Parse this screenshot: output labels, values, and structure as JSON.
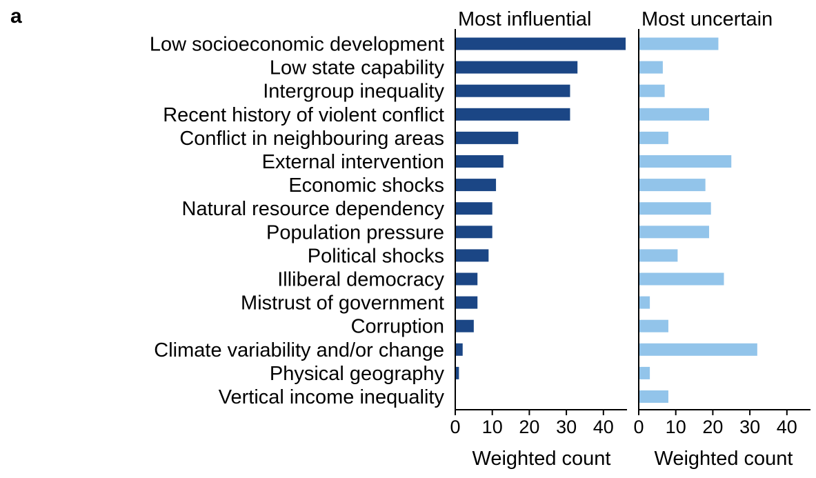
{
  "panel_letter": "a",
  "chart_data": {
    "type": "bar",
    "orientation": "horizontal",
    "categories": [
      "Low socioeconomic development",
      "Low state capability",
      "Intergroup inequality",
      "Recent history of violent conflict",
      "Conflict in neighbouring areas",
      "External intervention",
      "Economic shocks",
      "Natural resource dependency",
      "Population pressure",
      "Political shocks",
      "Illiberal democracy",
      "Mistrust of government",
      "Corruption",
      "Climate variability and/or change",
      "Physical geography",
      "Vertical income inequality"
    ],
    "panels": [
      {
        "title": "Most influential",
        "xlabel": "Weighted count",
        "xlim": [
          0,
          46
        ],
        "ticks": [
          0,
          10,
          20,
          30,
          40
        ],
        "color": "#1b4685",
        "values": [
          46,
          33,
          31,
          31,
          17,
          13,
          11,
          10,
          10,
          9,
          6,
          6,
          5,
          2,
          1,
          0
        ]
      },
      {
        "title": "Most uncertain",
        "xlabel": "Weighted count",
        "xlim": [
          0,
          46
        ],
        "ticks": [
          0,
          10,
          20,
          30,
          40
        ],
        "color": "#92c4ea",
        "values": [
          21.5,
          6.5,
          7,
          19,
          8,
          25,
          18,
          19.5,
          19,
          10.5,
          23,
          3,
          8,
          32,
          3,
          8
        ]
      }
    ]
  }
}
